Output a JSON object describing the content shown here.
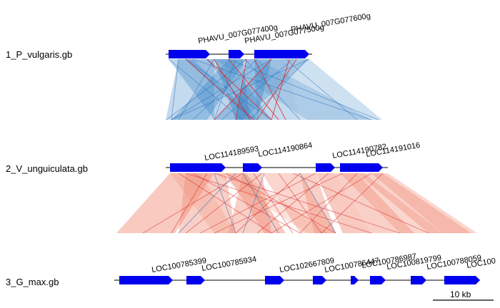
{
  "colors": {
    "gene_fill": "#0000ee",
    "backbone": "#000000",
    "link_forward_blue": "#3a86c8",
    "link_reverse_red": "#d92020",
    "link_salmon": "#f08a74",
    "link_line_red": "#dd2222",
    "link_line_blue": "#2f6fb5"
  },
  "tracks": [
    {
      "id": "p-vulgaris",
      "label": "1_P_vulgaris.gb",
      "genes": [
        {
          "label": "PHAVU_007G077400g",
          "strand": "+"
        },
        {
          "label": "PHAVU_007G077500g",
          "strand": "+"
        },
        {
          "label": "PHAVU_007G077600g",
          "strand": "+"
        }
      ]
    },
    {
      "id": "v-unguiculata",
      "label": "2_V_unguiculata.gb",
      "genes": [
        {
          "label": "LOC114189593",
          "strand": "+"
        },
        {
          "label": "LOC114190864",
          "strand": "+"
        },
        {
          "label": "LOC114190782",
          "strand": "+"
        },
        {
          "label": "LOC114191016",
          "strand": "+"
        }
      ]
    },
    {
      "id": "g-max",
      "label": "3_G_max.gb",
      "genes": [
        {
          "label": "LOC100785399",
          "strand": "+"
        },
        {
          "label": "LOC100785934",
          "strand": "+"
        },
        {
          "label": "LOC102667809",
          "strand": "+"
        },
        {
          "label": "LOC100786447",
          "strand": "+"
        },
        {
          "label": "LOC100786987",
          "strand": "+"
        },
        {
          "label": "LOC100819799",
          "strand": "+"
        },
        {
          "label": "LOC100788059",
          "strand": "+"
        },
        {
          "label": "LOC100",
          "strand": "+"
        }
      ]
    }
  ],
  "scale_bar": {
    "label": "10 kb"
  }
}
